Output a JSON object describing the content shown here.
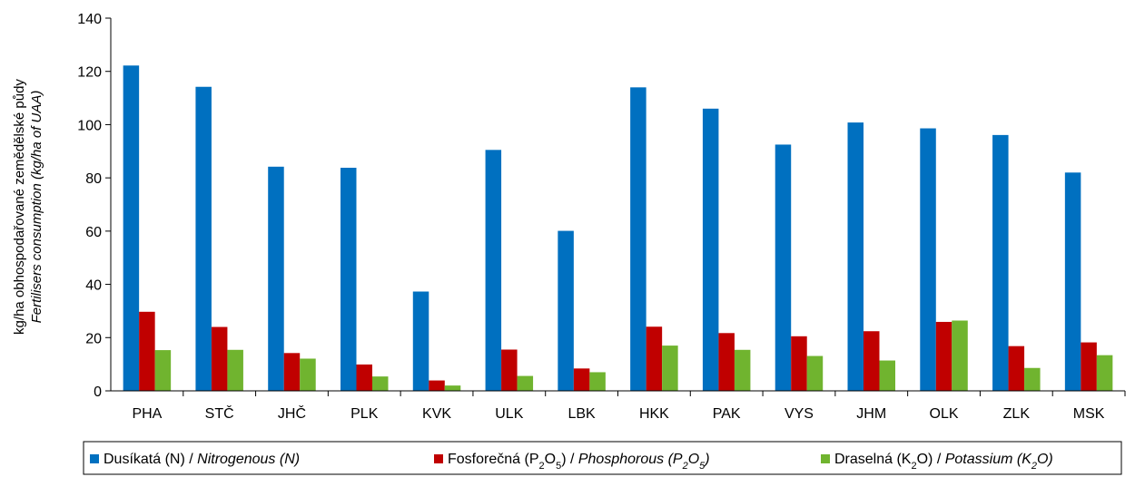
{
  "chart_data": {
    "type": "bar",
    "categories": [
      "PHA",
      "STČ",
      "JHČ",
      "PLK",
      "KVK",
      "ULK",
      "LBK",
      "HKK",
      "PAK",
      "VYS",
      "JHM",
      "OLK",
      "ZLK",
      "MSK"
    ],
    "series": [
      {
        "name": "Dusíkatá (N) / Nitrogenous (N)",
        "legend_cz": "Dusíkatá (N) / ",
        "legend_en": "Nitrogenous (N)",
        "color": "#0070c0",
        "values": [
          122.2,
          114.2,
          84.2,
          83.8,
          37.3,
          90.5,
          60.1,
          114.0,
          106.0,
          92.5,
          100.8,
          98.6,
          96.1,
          82.0
        ]
      },
      {
        "name": "Fosforečná (P2O5) / Phosphorous (P2O5)",
        "legend_cz": "Fosforečná (P",
        "legend_en": "Phosphorous (P",
        "color": "#c00000",
        "values": [
          29.7,
          24.0,
          14.2,
          9.9,
          3.9,
          15.5,
          8.4,
          24.1,
          21.7,
          20.5,
          22.4,
          25.9,
          16.8,
          18.2
        ]
      },
      {
        "name": "Draselná (K2O) / Potassium (K2O)",
        "legend_cz": "Draselná (K",
        "legend_en": "Potassium (K",
        "color": "#70b42f",
        "values": [
          15.3,
          15.4,
          12.1,
          5.4,
          2.0,
          5.6,
          7.0,
          17.0,
          15.4,
          13.1,
          11.4,
          26.4,
          8.6,
          13.4
        ]
      }
    ],
    "ylim": [
      0,
      140
    ],
    "yticks": [
      0,
      20,
      40,
      60,
      80,
      100,
      120,
      140
    ],
    "ylabel_line1": "kg/ha obhospodařované zemědělské půdy",
    "ylabel_line2": "Fertilisers consumption (kg/ha of UAA)",
    "legend_position": "bottom",
    "grid": false
  }
}
